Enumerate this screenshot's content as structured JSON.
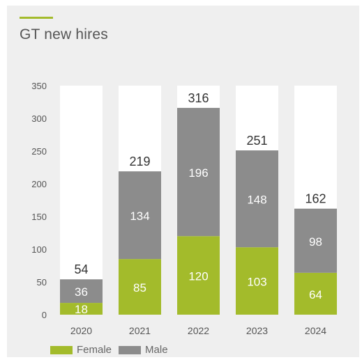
{
  "colors": {
    "accent": "#a3bb2b",
    "female": "#a3bb2b",
    "male": "#8c8c8c",
    "column_bg": "#ffffff",
    "axis_text": "#555555",
    "total_text": "#333333",
    "segment_label": "#ffffff"
  },
  "chart_data": {
    "type": "bar",
    "stacked": true,
    "title": "GT new hires",
    "categories": [
      "2020",
      "2021",
      "2022",
      "2023",
      "2024"
    ],
    "series": [
      {
        "name": "Female",
        "values": [
          18,
          85,
          120,
          103,
          64
        ]
      },
      {
        "name": "Male",
        "values": [
          36,
          134,
          196,
          148,
          98
        ]
      }
    ],
    "totals": [
      54,
      219,
      316,
      251,
      162
    ],
    "ylim": [
      0,
      350
    ],
    "yticks": [
      0,
      50,
      100,
      150,
      200,
      250,
      300,
      350
    ],
    "grid": false,
    "legend_position": "bottom-left"
  }
}
